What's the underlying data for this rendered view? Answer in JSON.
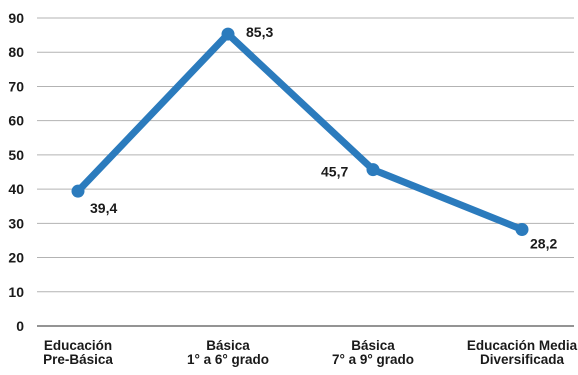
{
  "chart_data": {
    "type": "line",
    "categories": [
      [
        "Educación",
        "Pre-Básica"
      ],
      [
        "Básica",
        "1° a 6° grado"
      ],
      [
        "Básica",
        "7° a 9° grado"
      ],
      [
        "Educación Media",
        "Diversificada"
      ]
    ],
    "series": [
      {
        "values": [
          39.4,
          85.3,
          45.7,
          28.2
        ],
        "value_labels": [
          "39,4",
          "85,3",
          "45,7",
          "28,2"
        ]
      }
    ],
    "y_ticks": [
      "0",
      "10",
      "20",
      "30",
      "40",
      "50",
      "60",
      "70",
      "80",
      "90"
    ],
    "ylim": [
      0,
      90
    ],
    "grid": true,
    "line_color": "#2b7bbd",
    "grid_color": "#b3b3b3"
  }
}
